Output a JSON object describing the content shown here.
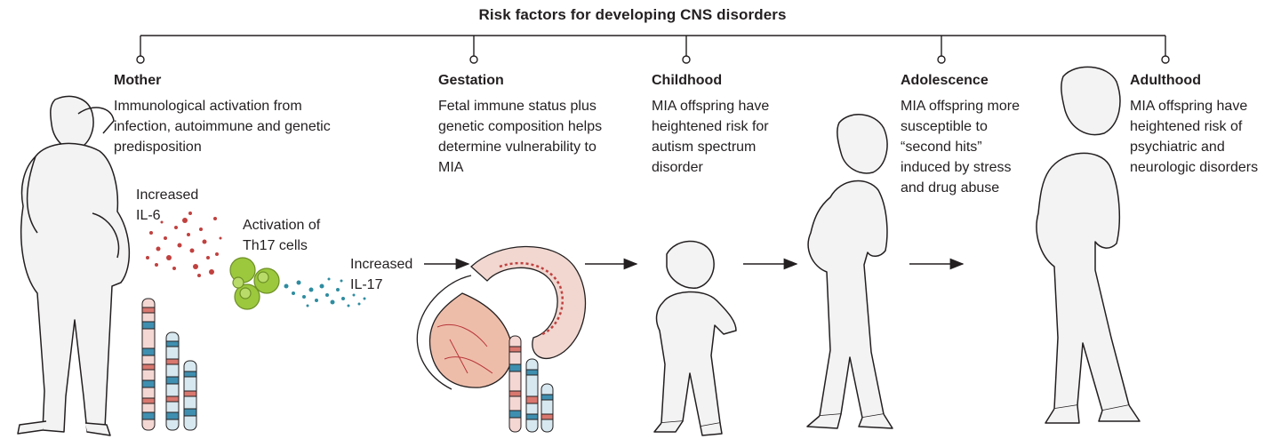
{
  "title": "Risk factors for developing CNS disorders",
  "stages": [
    {
      "name": "Mother",
      "desc": "Immunological activation from infection, autoimmune and genetic predisposition"
    },
    {
      "name": "Gestation",
      "desc": "Fetal immune status plus genetic composition helps determine vulnerability to MIA"
    },
    {
      "name": "Childhood",
      "desc": "MIA offspring have heightened risk for autism spectrum disorder"
    },
    {
      "name": "Adolescence",
      "desc": "MIA offspring more susceptible to “second hits” induced by stress and drug abuse"
    },
    {
      "name": "Adulthood",
      "desc": "MIA offspring have heightened risk of psychiatric and neurologic disorders"
    }
  ],
  "labels": {
    "il6": "Increased IL-6",
    "th17": "Activation of Th17 cells",
    "il17": "Increased IL-17"
  },
  "colors": {
    "il6_dots": "#c0413f",
    "il17_dots": "#2e8ca0",
    "th17_cells": "#9bc83d",
    "chromosome_red": "#d9776f",
    "chromosome_blue": "#3f8fb0",
    "line": "#231f20"
  }
}
